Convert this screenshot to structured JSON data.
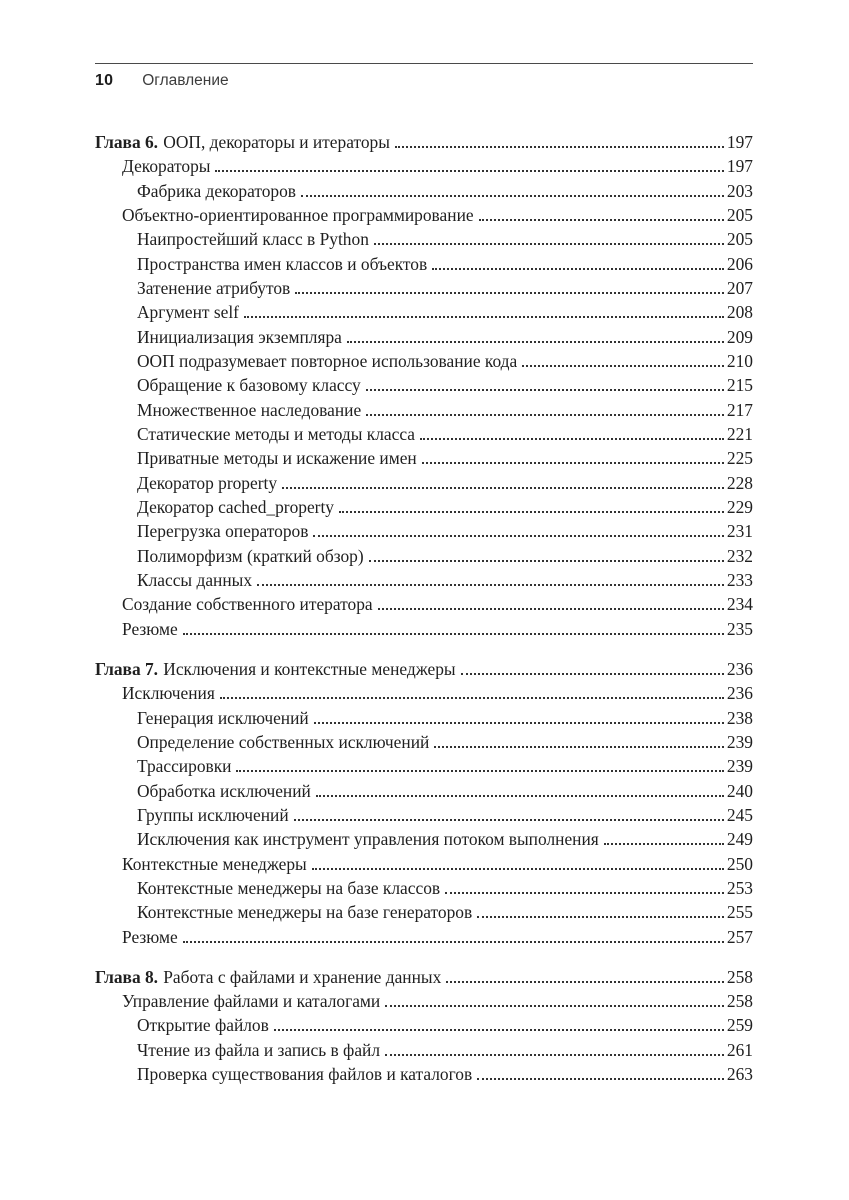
{
  "header": {
    "page_number": "10",
    "title": "Оглавление"
  },
  "colors": {
    "text": "#1f1f1f",
    "header_text": "#3d3d3d",
    "rule": "#4a4a4a",
    "background": "#ffffff"
  },
  "toc": {
    "entries": [
      {
        "level": 0,
        "prefix": "Глава 6.",
        "title": "ООП, декораторы и итераторы",
        "page": "197"
      },
      {
        "level": 1,
        "title": "Декораторы",
        "page": "197"
      },
      {
        "level": 2,
        "title": "Фабрика декораторов",
        "page": "203"
      },
      {
        "level": 1,
        "title": "Объектно-ориентированное программирование",
        "page": "205"
      },
      {
        "level": 2,
        "title": "Наипростейший класс в Python",
        "page": "205"
      },
      {
        "level": 2,
        "title": "Пространства имен классов и объектов",
        "page": "206"
      },
      {
        "level": 2,
        "title": "Затенение атрибутов",
        "page": "207"
      },
      {
        "level": 2,
        "title": "Аргумент self",
        "page": "208"
      },
      {
        "level": 2,
        "title": "Инициализация экземпляра",
        "page": "209"
      },
      {
        "level": 2,
        "title": "ООП подразумевает повторное использование кода",
        "page": "210"
      },
      {
        "level": 2,
        "title": "Обращение к базовому классу",
        "page": "215"
      },
      {
        "level": 2,
        "title": "Множественное наследование",
        "page": "217"
      },
      {
        "level": 2,
        "title": "Статические методы и методы класса",
        "page": "221"
      },
      {
        "level": 2,
        "title": "Приватные методы и искажение имен",
        "page": "225"
      },
      {
        "level": 2,
        "title": "Декоратор property",
        "page": "228"
      },
      {
        "level": 2,
        "title": "Декоратор cached_property",
        "page": "229"
      },
      {
        "level": 2,
        "title": "Перегрузка операторов",
        "page": "231"
      },
      {
        "level": 2,
        "title": "Полиморфизм (краткий обзор)",
        "page": "232"
      },
      {
        "level": 2,
        "title": "Классы данных",
        "page": "233"
      },
      {
        "level": 1,
        "title": "Создание собственного итератора",
        "page": "234"
      },
      {
        "level": 1,
        "title": "Резюме",
        "page": "235"
      },
      {
        "level": 0,
        "prefix": "Глава 7.",
        "title": "Исключения и контекстные менеджеры",
        "page": "236"
      },
      {
        "level": 1,
        "title": "Исключения",
        "page": "236"
      },
      {
        "level": 2,
        "title": "Генерация исключений",
        "page": "238"
      },
      {
        "level": 2,
        "title": "Определение собственных исключений",
        "page": "239"
      },
      {
        "level": 2,
        "title": "Трассировки",
        "page": "239"
      },
      {
        "level": 2,
        "title": "Обработка исключений",
        "page": "240"
      },
      {
        "level": 2,
        "title": "Группы исключений",
        "page": "245"
      },
      {
        "level": 2,
        "title": "Исключения как инструмент управления потоком выполнения",
        "page": "249"
      },
      {
        "level": 1,
        "title": "Контекстные менеджеры",
        "page": "250"
      },
      {
        "level": 2,
        "title": "Контекстные менеджеры на базе классов",
        "page": "253"
      },
      {
        "level": 2,
        "title": "Контекстные менеджеры на базе генераторов",
        "page": "255"
      },
      {
        "level": 1,
        "title": "Резюме",
        "page": "257"
      },
      {
        "level": 0,
        "prefix": "Глава 8.",
        "title": "Работа с файлами и хранение данных",
        "page": "258"
      },
      {
        "level": 1,
        "title": "Управление файлами и каталогами",
        "page": "258"
      },
      {
        "level": 2,
        "title": "Открытие файлов",
        "page": "259"
      },
      {
        "level": 2,
        "title": "Чтение из файла и запись в файл",
        "page": "261"
      },
      {
        "level": 2,
        "title": "Проверка существования файлов и каталогов",
        "page": "263"
      }
    ]
  }
}
